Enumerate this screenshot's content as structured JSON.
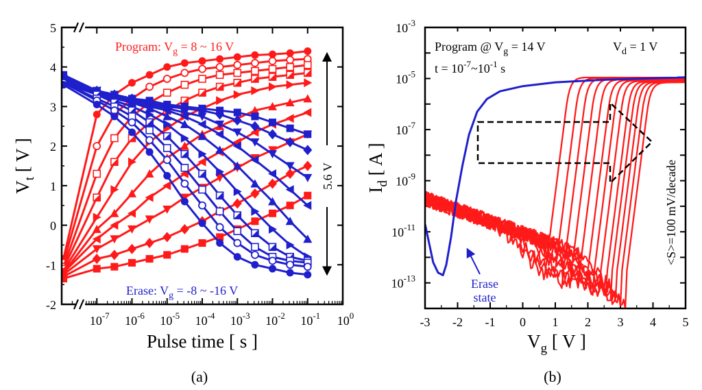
{
  "chart_data": [
    {
      "type": "scatter",
      "panel": "(a)",
      "xlabel_main": "Pulse time",
      "xlabel_unit": "[ s ]",
      "ylabel_main": "V",
      "ylabel_sub": "t",
      "ylabel_unit": "[ V ]",
      "xscale": "log",
      "xlim": [
        1e-08,
        1
      ],
      "ylim": [
        -2,
        5
      ],
      "yticks": [
        "-2",
        "-1",
        "0",
        "1",
        "2",
        "3",
        "4",
        "5"
      ],
      "xticks": [
        {
          "base": "10",
          "exp": "-7",
          "x": -7
        },
        {
          "base": "10",
          "exp": "-6",
          "x": -6
        },
        {
          "base": "10",
          "exp": "-5",
          "x": -5
        },
        {
          "base": "10",
          "exp": "-4",
          "x": -4
        },
        {
          "base": "10",
          "exp": "-3",
          "x": -3
        },
        {
          "base": "10",
          "exp": "-2",
          "x": -2
        },
        {
          "base": "10",
          "exp": "-1",
          "x": -1
        },
        {
          "base": "10",
          "exp": "0",
          "x": 0
        }
      ],
      "pulse_times_log10": [
        -7,
        -6.5,
        -6,
        -5.5,
        -5,
        -4.5,
        -4,
        -3.5,
        -3,
        -2.5,
        -2,
        -1.5,
        -1
      ],
      "initial_program_vt": [
        -0.85,
        -0.95,
        -1.05,
        -1.1,
        -1.15,
        -1.2,
        -1.2,
        -1.25,
        -1.3,
        -1.35
      ],
      "initial_erase_vt": [
        3.8,
        3.75,
        3.7,
        3.7,
        3.65,
        3.65,
        3.6,
        3.6,
        3.6,
        3.55
      ],
      "program_series": [
        {
          "marker": "circle-filled",
          "values": [
            2.8,
            3.3,
            3.6,
            3.8,
            4.0,
            4.1,
            4.15,
            4.2,
            4.25,
            4.3,
            4.32,
            4.35,
            4.4
          ]
        },
        {
          "marker": "circle-open",
          "values": [
            2.0,
            2.8,
            3.2,
            3.5,
            3.7,
            3.85,
            3.95,
            4.0,
            4.05,
            4.1,
            4.15,
            4.18,
            4.2
          ]
        },
        {
          "marker": "square-open",
          "values": [
            1.3,
            2.2,
            2.75,
            3.1,
            3.35,
            3.55,
            3.7,
            3.8,
            3.85,
            3.9,
            3.95,
            4.0,
            4.05
          ]
        },
        {
          "marker": "square-split",
          "values": [
            0.7,
            1.6,
            2.2,
            2.6,
            2.9,
            3.15,
            3.35,
            3.5,
            3.6,
            3.7,
            3.75,
            3.8,
            3.85
          ]
        },
        {
          "marker": "triangle-right",
          "values": [
            0.2,
            0.9,
            1.6,
            2.1,
            2.45,
            2.75,
            2.95,
            3.15,
            3.3,
            3.4,
            3.5,
            3.55,
            3.6
          ]
        },
        {
          "marker": "triangle-up",
          "values": [
            -0.1,
            0.3,
            0.8,
            1.3,
            1.7,
            2.0,
            2.3,
            2.5,
            2.7,
            2.9,
            3.0,
            3.1,
            3.2
          ]
        },
        {
          "marker": "triangle-left",
          "values": [
            -0.35,
            0.0,
            0.3,
            0.7,
            1.0,
            1.3,
            1.6,
            1.85,
            2.1,
            2.35,
            2.55,
            2.7,
            2.85
          ]
        },
        {
          "marker": "triangle-down",
          "values": [
            -0.6,
            -0.35,
            -0.1,
            0.15,
            0.4,
            0.7,
            0.95,
            1.2,
            1.45,
            1.7,
            1.9,
            2.1,
            2.3
          ]
        },
        {
          "marker": "diamond",
          "values": [
            -0.85,
            -0.75,
            -0.6,
            -0.45,
            -0.3,
            -0.1,
            0.1,
            0.35,
            0.55,
            0.8,
            1.05,
            1.3,
            1.5
          ]
        },
        {
          "marker": "square-filled",
          "values": [
            -1.1,
            -1.05,
            -0.95,
            -0.85,
            -0.75,
            -0.6,
            -0.45,
            -0.3,
            -0.1,
            0.1,
            0.3,
            0.5,
            0.75
          ]
        }
      ],
      "erase_series": [
        {
          "marker": "square-filled",
          "values": [
            3.4,
            3.3,
            3.2,
            3.15,
            3.05,
            3.0,
            2.95,
            2.9,
            2.85,
            2.75,
            2.6,
            2.45,
            2.3
          ]
        },
        {
          "marker": "diamond",
          "values": [
            3.4,
            3.3,
            3.2,
            3.1,
            3.0,
            2.95,
            2.9,
            2.8,
            2.65,
            2.5,
            2.3,
            2.1,
            1.9
          ]
        },
        {
          "marker": "triangle-down",
          "values": [
            3.4,
            3.3,
            3.15,
            3.05,
            2.95,
            2.85,
            2.75,
            2.55,
            2.35,
            2.1,
            1.8,
            1.5,
            1.2
          ]
        },
        {
          "marker": "triangle-left",
          "values": [
            3.4,
            3.25,
            3.1,
            3.0,
            2.9,
            2.75,
            2.55,
            2.3,
            2.0,
            1.65,
            1.3,
            0.9,
            0.5
          ]
        },
        {
          "marker": "triangle-up",
          "values": [
            3.35,
            3.2,
            3.1,
            2.95,
            2.75,
            2.55,
            2.25,
            1.9,
            1.5,
            1.05,
            0.6,
            0.1,
            -0.35
          ]
        },
        {
          "marker": "triangle-right",
          "values": [
            3.3,
            3.15,
            3.0,
            2.8,
            2.55,
            2.2,
            1.8,
            1.35,
            0.85,
            0.35,
            -0.1,
            -0.5,
            -0.8
          ]
        },
        {
          "marker": "square-split",
          "values": [
            3.3,
            3.1,
            2.9,
            2.6,
            2.25,
            1.8,
            1.3,
            0.75,
            0.25,
            -0.2,
            -0.55,
            -0.8,
            -0.9
          ]
        },
        {
          "marker": "square-open",
          "values": [
            3.2,
            3.0,
            2.75,
            2.4,
            1.95,
            1.45,
            0.9,
            0.35,
            -0.15,
            -0.55,
            -0.8,
            -0.9,
            -0.95
          ]
        },
        {
          "marker": "circle-open",
          "values": [
            3.15,
            2.9,
            2.6,
            2.15,
            1.65,
            1.05,
            0.5,
            -0.05,
            -0.45,
            -0.75,
            -0.9,
            -1.0,
            -1.05
          ]
        },
        {
          "marker": "circle-filled",
          "values": [
            3.05,
            2.75,
            2.35,
            1.85,
            1.25,
            0.6,
            0.05,
            -0.45,
            -0.8,
            -1.0,
            -1.1,
            -1.2,
            -1.25
          ]
        }
      ],
      "program_label_prefix": "Program: V",
      "program_label_sub": "g",
      "program_label_suffix": " = 8 ~ 16 V",
      "erase_label_prefix": "Erase: V",
      "erase_label_sub": "g",
      "erase_label_suffix": " = -8 ~ -16 V",
      "window_label": "5.6 V",
      "window_range": [
        -1.3,
        4.4
      ],
      "colors": {
        "program": "#ff1a1a",
        "erase": "#1f1fcc"
      }
    },
    {
      "type": "line",
      "panel": "(b)",
      "xlabel_main": "V",
      "xlabel_sub": "g",
      "xlabel_unit": "[ V ]",
      "ylabel_main": "I",
      "ylabel_sub": "d",
      "ylabel_unit": "[ A ]",
      "yscale": "log",
      "xlim": [
        -3,
        5
      ],
      "ylim": [
        1e-14,
        0.001
      ],
      "xticks": [
        "-3",
        "-2",
        "-1",
        "0",
        "1",
        "2",
        "3",
        "4",
        "5"
      ],
      "yticks": [
        {
          "base": "10",
          "exp": "-3",
          "y": -3
        },
        {
          "base": "10",
          "exp": "-5",
          "y": -5
        },
        {
          "base": "10",
          "exp": "-7",
          "y": -7
        },
        {
          "base": "10",
          "exp": "-9",
          "y": -9
        },
        {
          "base": "10",
          "exp": "-11",
          "y": -11
        },
        {
          "base": "10",
          "exp": "-13",
          "y": -13
        }
      ],
      "erase_curve_log10": [
        [
          -3.0,
          -10.7
        ],
        [
          -2.9,
          -11.3
        ],
        [
          -2.75,
          -12.2
        ],
        [
          -2.6,
          -12.6
        ],
        [
          -2.45,
          -12.7
        ],
        [
          -2.35,
          -12.3
        ],
        [
          -2.2,
          -11.2
        ],
        [
          -2.05,
          -9.8
        ],
        [
          -1.85,
          -8.4
        ],
        [
          -1.65,
          -7.2
        ],
        [
          -1.4,
          -6.3
        ],
        [
          -1.1,
          -5.8
        ],
        [
          -0.7,
          -5.5
        ],
        [
          0.0,
          -5.3
        ],
        [
          1.0,
          -5.15
        ],
        [
          2.5,
          -5.05
        ],
        [
          5.0,
          -4.95
        ]
      ],
      "program_vth_shifts": [
        1.0,
        1.3,
        1.55,
        1.8,
        2.05,
        2.3,
        2.5,
        2.7,
        2.9,
        3.05,
        3.2,
        3.35,
        3.5
      ],
      "program_label_prefix": "Program @ V",
      "program_label_sub": "g",
      "program_label_suffix": " = 14 V",
      "vd_label_prefix": "V",
      "vd_label_sub": "d",
      "vd_label_suffix": " = 1 V",
      "time_label_prefix": "t = 10",
      "time_label_exp1": "-7",
      "time_label_mid": "~10",
      "time_label_exp2": "-1",
      "time_label_suffix": " s",
      "erase_state_label_line1": "Erase",
      "erase_state_label_line2": "state",
      "slope_label": "<S>=100 mV/decade",
      "colors": {
        "program": "#ff1a1a",
        "erase": "#1f1fcc"
      }
    }
  ],
  "captions": {
    "a": "(a)",
    "b": "(b)"
  }
}
